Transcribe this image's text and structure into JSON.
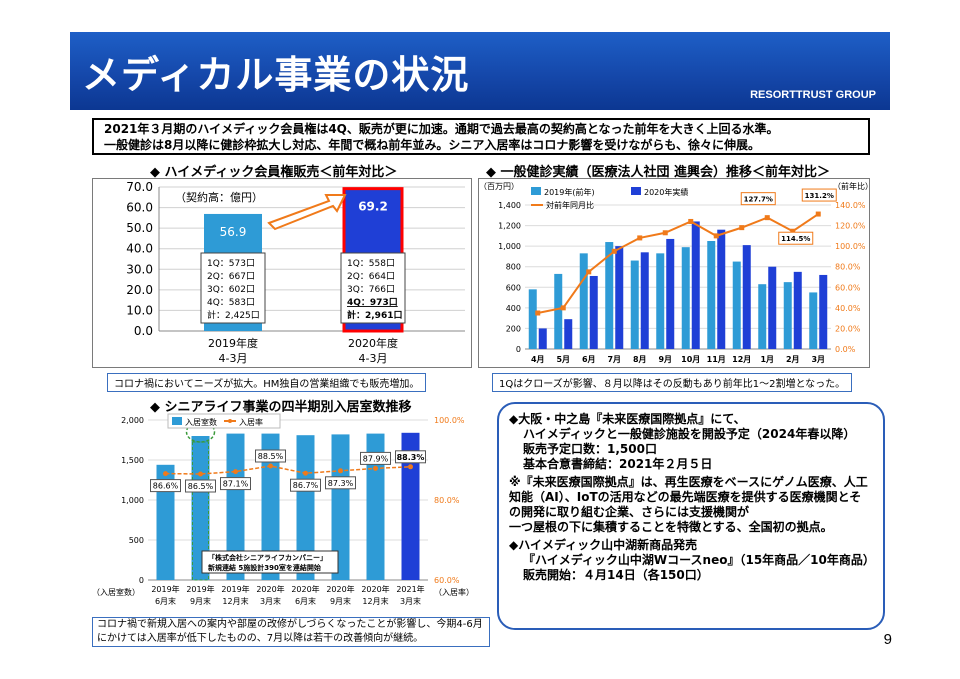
{
  "header": {
    "title": "メディカル事業の状況",
    "group": "RESORTTRUST GROUP"
  },
  "summary": {
    "line1": "2021年３月期のハイメディック会員権は4Q、販売が更に加速。通期で過去最高の契約高となった前年を大きく上回る水準。",
    "line2": "一般健診は8月以降に健診枠拡大し対応、年間で概ね前年並み。シニア入居率はコロナ影響を受けながらも、徐々に伸展。"
  },
  "section1": {
    "title": "◆ ハイメディック会員権販売＜前年対比＞",
    "note": "コロナ禍においてニーズが拡大。HM独自の営業組織でも販売増加。"
  },
  "section2": {
    "title": "◆ 一般健診実績（医療法人社団 進興会）推移＜前年対比＞",
    "note": "1Qはクローズが影響、８月以降はその反動もあり前年比1～2割増となった。"
  },
  "section3": {
    "title": "◆ シニアライフ事業の四半期別入居室数推移",
    "bottom_note": "コロナ禍で新規入居への案内や部屋の改修がしづらくなったことが影響し、今期4-6月にかけては入居率が低下したものの、7月以降は若干の改善傾向が継続。"
  },
  "info": {
    "line1": "◆大阪・中之島『未来医療国際拠点』にて、",
    "line2": "ハイメディックと一般健診施設を開設予定（2024年春以降）",
    "line3": "販売予定口数：1,500口",
    "line4": "基本合意書締結：2021年２月５日",
    "line5": "※『未来医療国際拠点』は、再生医療をベースにゲノム医療、人工知能（AI）、IoTの活用などの最先端医療を提供する医療機関とその開発に取り組む企業、さらには支援機関が",
    "line6": "一つ屋根の下に集積することを特徴とする、全国初の拠点。",
    "line7": "◆ハイメディック山中湖新商品発売",
    "line8": "『ハイメディック山中湖Wコースneo』（15年商品／10年商品）",
    "line9": "販売開始：４月14日（各150口）"
  },
  "page_number": "9",
  "chart_data": [
    {
      "type": "bar",
      "ylabel": "（契約高：億円）",
      "ylim": [
        0,
        70
      ],
      "yticks": [
        "0.0",
        "10.0",
        "20.0",
        "30.0",
        "40.0",
        "50.0",
        "60.0",
        "70.0"
      ],
      "categories": [
        [
          "2019年度",
          "4-3月"
        ],
        [
          "2020年度",
          "4-3月"
        ]
      ],
      "values": [
        56.9,
        69.2
      ],
      "value_labels": [
        "56.9",
        "69.2"
      ],
      "colors": [
        "#2e9bd6",
        "#1f3fd6"
      ],
      "breakdown": [
        [
          "1Q：573口",
          "2Q：667口",
          "3Q：602口",
          "4Q：583口",
          "計：2,425口"
        ],
        [
          "1Q：558口",
          "2Q：664口",
          "3Q：766口",
          "4Q：973口",
          "計：2,961口"
        ]
      ]
    },
    {
      "type": "bar",
      "y_unit_left": "（百万円）",
      "y_unit_right": "（前年比）",
      "ylim": [
        0,
        1400
      ],
      "y2lim": [
        0,
        140
      ],
      "yticks": [
        "0",
        "200",
        "400",
        "600",
        "800",
        "1,000",
        "1,200",
        "1,400"
      ],
      "y2ticks": [
        "0.0%",
        "20.0%",
        "40.0%",
        "60.0%",
        "80.0%",
        "100.0%",
        "120.0%",
        "140.0%"
      ],
      "categories": [
        "4月",
        "5月",
        "6月",
        "7月",
        "8月",
        "9月",
        "10月",
        "11月",
        "12月",
        "1月",
        "2月",
        "3月"
      ],
      "series": [
        {
          "name": "2019年(前年)",
          "color": "#2e9bd6",
          "values": [
            580,
            730,
            930,
            1040,
            860,
            930,
            990,
            1050,
            850,
            630,
            650,
            550
          ]
        },
        {
          "name": "2020年実績",
          "color": "#1f3fd6",
          "values": [
            200,
            290,
            710,
            1000,
            940,
            1070,
            1240,
            1160,
            1010,
            800,
            750,
            720
          ]
        },
        {
          "name": "対前年同月比",
          "color": "#f07a1a",
          "values": [
            35,
            40,
            75,
            95,
            108,
            113,
            124,
            110,
            118,
            127.7,
            114.5,
            131.2
          ]
        }
      ],
      "callouts": [
        "127.7%",
        "114.5%",
        "131.2%"
      ]
    },
    {
      "type": "bar",
      "y_unit_left": "（入居室数）",
      "y_unit_right": "（入居率）",
      "ylim": [
        0,
        2000
      ],
      "y2lim": [
        60,
        100
      ],
      "yticks": [
        "0",
        "500",
        "1,000",
        "1,500",
        "2,000"
      ],
      "y2ticks": [
        "60.0%",
        "80.0%",
        "100.0%"
      ],
      "categories": [
        [
          "2019年",
          "6月末"
        ],
        [
          "2019年",
          "9月末"
        ],
        [
          "2019年",
          "12月末"
        ],
        [
          "2020年",
          "3月末"
        ],
        [
          "2020年",
          "6月末"
        ],
        [
          "2020年",
          "9月末"
        ],
        [
          "2020年",
          "12月末"
        ],
        [
          "2021年",
          "3月末"
        ]
      ],
      "series": [
        {
          "name": "入居室数",
          "color": "#2e9bd6",
          "values": [
            1440,
            1800,
            1830,
            1830,
            1810,
            1820,
            1830,
            1840
          ]
        },
        {
          "name": "入居率",
          "color": "#f07a1a",
          "values": [
            86.6,
            86.5,
            87.1,
            88.5,
            86.7,
            87.3,
            87.9,
            88.3
          ]
        }
      ],
      "rate_labels": [
        "86.6%",
        "86.5%",
        "87.1%",
        "88.5%",
        "86.7%",
        "87.3%",
        "87.9%",
        "88.3%"
      ],
      "annotation": {
        "line1": "「株式会社シニアライフカンパニー」",
        "line2": "新規連結 5施設計390室を連結開始"
      }
    }
  ]
}
